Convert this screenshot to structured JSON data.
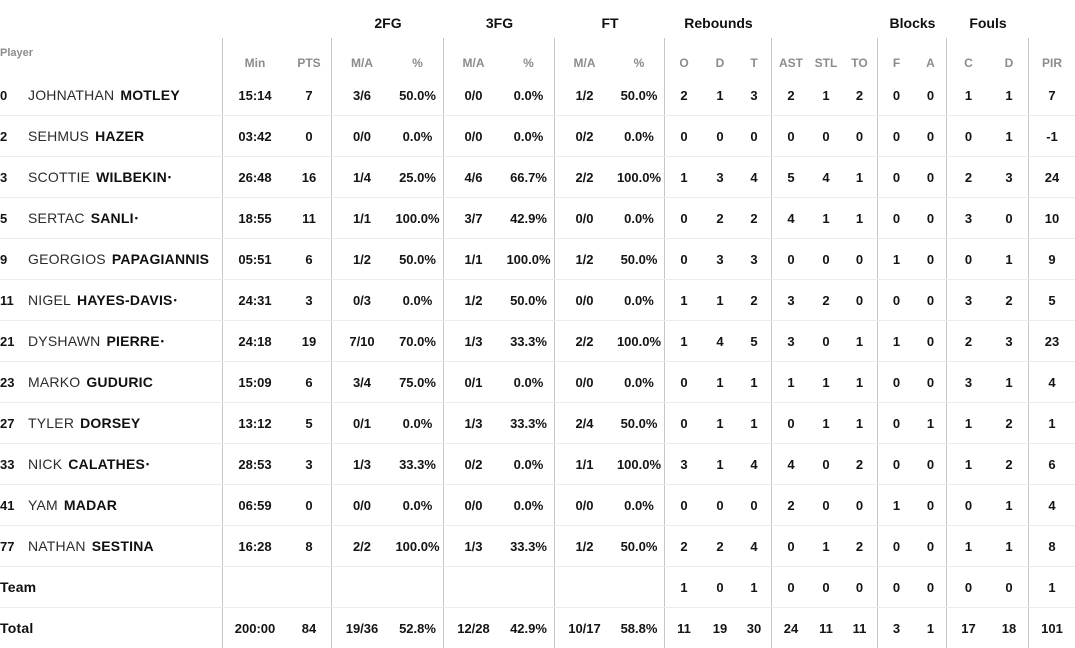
{
  "colors": {
    "background": "#ffffff",
    "group_header_text": "#101010",
    "sub_header_text": "#8c8c8c",
    "value_text": "#141414",
    "vertical_divider": "#c6c6c6",
    "row_separator": "#ececec"
  },
  "header": {
    "player": "Player",
    "groups": {
      "fg2": "2FG",
      "fg3": "3FG",
      "ft": "FT",
      "reb": "Rebounds",
      "blk": "Blocks",
      "fls": "Fouls"
    },
    "sub": {
      "min": "Min",
      "pts": "PTS",
      "ma": "M/A",
      "pct": "%",
      "o": "O",
      "d": "D",
      "t": "T",
      "ast": "AST",
      "stl": "STL",
      "to": "TO",
      "f": "F",
      "a": "A",
      "c": "C",
      "d2": "D",
      "pir": "PIR"
    }
  },
  "rows": [
    {
      "num": "0",
      "first": "JOHNATHAN",
      "last": "MOTLEY",
      "star": "",
      "min": "15:14",
      "pts": "7",
      "fg2": "3/6",
      "fg2p": "50.0%",
      "fg3": "0/0",
      "fg3p": "0.0%",
      "ft": "1/2",
      "ftp": "50.0%",
      "o": "2",
      "d": "1",
      "t": "3",
      "ast": "2",
      "stl": "1",
      "to": "2",
      "bf": "0",
      "ba": "0",
      "fc": "1",
      "fd": "1",
      "pir": "7"
    },
    {
      "num": "2",
      "first": "SEHMUS",
      "last": "HAZER",
      "star": "",
      "min": "03:42",
      "pts": "0",
      "fg2": "0/0",
      "fg2p": "0.0%",
      "fg3": "0/0",
      "fg3p": "0.0%",
      "ft": "0/2",
      "ftp": "0.0%",
      "o": "0",
      "d": "0",
      "t": "0",
      "ast": "0",
      "stl": "0",
      "to": "0",
      "bf": "0",
      "ba": "0",
      "fc": "0",
      "fd": "1",
      "pir": "-1"
    },
    {
      "num": "3",
      "first": "SCOTTIE",
      "last": "WILBEKIN",
      "star": "•",
      "min": "26:48",
      "pts": "16",
      "fg2": "1/4",
      "fg2p": "25.0%",
      "fg3": "4/6",
      "fg3p": "66.7%",
      "ft": "2/2",
      "ftp": "100.0%",
      "o": "1",
      "d": "3",
      "t": "4",
      "ast": "5",
      "stl": "4",
      "to": "1",
      "bf": "0",
      "ba": "0",
      "fc": "2",
      "fd": "3",
      "pir": "24"
    },
    {
      "num": "5",
      "first": "SERTAC",
      "last": "SANLI",
      "star": "•",
      "min": "18:55",
      "pts": "11",
      "fg2": "1/1",
      "fg2p": "100.0%",
      "fg3": "3/7",
      "fg3p": "42.9%",
      "ft": "0/0",
      "ftp": "0.0%",
      "o": "0",
      "d": "2",
      "t": "2",
      "ast": "4",
      "stl": "1",
      "to": "1",
      "bf": "0",
      "ba": "0",
      "fc": "3",
      "fd": "0",
      "pir": "10"
    },
    {
      "num": "9",
      "first": "GEORGIOS",
      "last": "PAPAGIANNIS",
      "star": "",
      "min": "05:51",
      "pts": "6",
      "fg2": "1/2",
      "fg2p": "50.0%",
      "fg3": "1/1",
      "fg3p": "100.0%",
      "ft": "1/2",
      "ftp": "50.0%",
      "o": "0",
      "d": "3",
      "t": "3",
      "ast": "0",
      "stl": "0",
      "to": "0",
      "bf": "1",
      "ba": "0",
      "fc": "0",
      "fd": "1",
      "pir": "9"
    },
    {
      "num": "11",
      "first": "NIGEL",
      "last": "HAYES-DAVIS",
      "star": "•",
      "min": "24:31",
      "pts": "3",
      "fg2": "0/3",
      "fg2p": "0.0%",
      "fg3": "1/2",
      "fg3p": "50.0%",
      "ft": "0/0",
      "ftp": "0.0%",
      "o": "1",
      "d": "1",
      "t": "2",
      "ast": "3",
      "stl": "2",
      "to": "0",
      "bf": "0",
      "ba": "0",
      "fc": "3",
      "fd": "2",
      "pir": "5"
    },
    {
      "num": "21",
      "first": "DYSHAWN",
      "last": "PIERRE",
      "star": "•",
      "min": "24:18",
      "pts": "19",
      "fg2": "7/10",
      "fg2p": "70.0%",
      "fg3": "1/3",
      "fg3p": "33.3%",
      "ft": "2/2",
      "ftp": "100.0%",
      "o": "1",
      "d": "4",
      "t": "5",
      "ast": "3",
      "stl": "0",
      "to": "1",
      "bf": "1",
      "ba": "0",
      "fc": "2",
      "fd": "3",
      "pir": "23"
    },
    {
      "num": "23",
      "first": "MARKO",
      "last": "GUDURIC",
      "star": "",
      "min": "15:09",
      "pts": "6",
      "fg2": "3/4",
      "fg2p": "75.0%",
      "fg3": "0/1",
      "fg3p": "0.0%",
      "ft": "0/0",
      "ftp": "0.0%",
      "o": "0",
      "d": "1",
      "t": "1",
      "ast": "1",
      "stl": "1",
      "to": "1",
      "bf": "0",
      "ba": "0",
      "fc": "3",
      "fd": "1",
      "pir": "4"
    },
    {
      "num": "27",
      "first": "TYLER",
      "last": "DORSEY",
      "star": "",
      "min": "13:12",
      "pts": "5",
      "fg2": "0/1",
      "fg2p": "0.0%",
      "fg3": "1/3",
      "fg3p": "33.3%",
      "ft": "2/4",
      "ftp": "50.0%",
      "o": "0",
      "d": "1",
      "t": "1",
      "ast": "0",
      "stl": "1",
      "to": "1",
      "bf": "0",
      "ba": "1",
      "fc": "1",
      "fd": "2",
      "pir": "1"
    },
    {
      "num": "33",
      "first": "NICK",
      "last": "CALATHES",
      "star": "•",
      "min": "28:53",
      "pts": "3",
      "fg2": "1/3",
      "fg2p": "33.3%",
      "fg3": "0/2",
      "fg3p": "0.0%",
      "ft": "1/1",
      "ftp": "100.0%",
      "o": "3",
      "d": "1",
      "t": "4",
      "ast": "4",
      "stl": "0",
      "to": "2",
      "bf": "0",
      "ba": "0",
      "fc": "1",
      "fd": "2",
      "pir": "6"
    },
    {
      "num": "41",
      "first": "YAM",
      "last": "MADAR",
      "star": "",
      "min": "06:59",
      "pts": "0",
      "fg2": "0/0",
      "fg2p": "0.0%",
      "fg3": "0/0",
      "fg3p": "0.0%",
      "ft": "0/0",
      "ftp": "0.0%",
      "o": "0",
      "d": "0",
      "t": "0",
      "ast": "2",
      "stl": "0",
      "to": "0",
      "bf": "1",
      "ba": "0",
      "fc": "0",
      "fd": "1",
      "pir": "4"
    },
    {
      "num": "77",
      "first": "NATHAN",
      "last": "SESTINA",
      "star": "",
      "min": "16:28",
      "pts": "8",
      "fg2": "2/2",
      "fg2p": "100.0%",
      "fg3": "1/3",
      "fg3p": "33.3%",
      "ft": "1/2",
      "ftp": "50.0%",
      "o": "2",
      "d": "2",
      "t": "4",
      "ast": "0",
      "stl": "1",
      "to": "2",
      "bf": "0",
      "ba": "0",
      "fc": "1",
      "fd": "1",
      "pir": "8"
    },
    {
      "num": "",
      "first": "",
      "last": "Team",
      "star": "",
      "min": "",
      "pts": "",
      "fg2": "",
      "fg2p": "",
      "fg3": "",
      "fg3p": "",
      "ft": "",
      "ftp": "",
      "o": "1",
      "d": "0",
      "t": "1",
      "ast": "0",
      "stl": "0",
      "to": "0",
      "bf": "0",
      "ba": "0",
      "fc": "0",
      "fd": "0",
      "pir": "1"
    },
    {
      "num": "",
      "first": "",
      "last": "Total",
      "star": "",
      "min": "200:00",
      "pts": "84",
      "fg2": "19/36",
      "fg2p": "52.8%",
      "fg3": "12/28",
      "fg3p": "42.9%",
      "ft": "10/17",
      "ftp": "58.8%",
      "o": "11",
      "d": "19",
      "t": "30",
      "ast": "24",
      "stl": "11",
      "to": "11",
      "bf": "3",
      "ba": "1",
      "fc": "17",
      "fd": "18",
      "pir": "101"
    }
  ]
}
